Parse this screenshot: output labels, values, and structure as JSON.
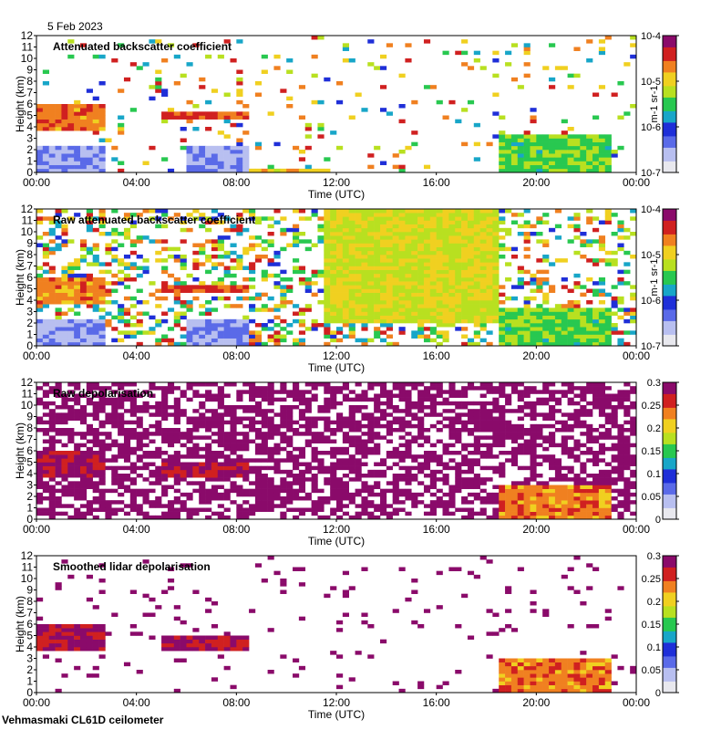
{
  "header": {
    "date": "5 Feb 2023"
  },
  "footer": {
    "site": "Vehmasmaki CL61D ceilometer"
  },
  "colors": {
    "background": "#ffffff",
    "no_data": "#ffffff",
    "axis": "#000000",
    "scale": [
      "#e8e8ee",
      "#b8bff0",
      "#5a6ae8",
      "#1f2fd8",
      "#18a6c8",
      "#28c850",
      "#b8e020",
      "#f0d020",
      "#f08020",
      "#d02020",
      "#8a0a6a"
    ]
  },
  "chart_data": [
    {
      "type": "heatmap",
      "title": "Attenuated backscatter coefficient",
      "xlabel": "Time (UTC)",
      "ylabel": "Height (km)",
      "x_unit": "hours",
      "xlim": [
        0,
        24
      ],
      "ylim": [
        0,
        12
      ],
      "xticks": [
        0,
        4,
        8,
        12,
        16,
        20,
        24
      ],
      "xticklabels": [
        "00:00",
        "04:00",
        "08:00",
        "12:00",
        "16:00",
        "20:00",
        "00:00"
      ],
      "yticks": [
        0,
        1,
        2,
        3,
        4,
        5,
        6,
        7,
        8,
        9,
        10,
        11,
        12
      ],
      "yticklabels": [
        "0",
        "1",
        "2",
        "3",
        "4",
        "5",
        "6",
        "7",
        "8",
        "9",
        "10",
        "11",
        "12"
      ],
      "colorbar": {
        "scale": "log",
        "range": [
          "1e-7",
          "1e-4"
        ],
        "ticklabels": [
          "10-7",
          "10-6",
          "10-5",
          "10-4"
        ],
        "tick_values": [
          0,
          0.3333,
          0.6667,
          1
        ],
        "unit_label": "m-1 sr-1"
      },
      "features": [
        {
          "name": "low cloud layer",
          "t": [
            0,
            2.8
          ],
          "h": [
            3.6,
            6.1
          ],
          "level": 0.85
        },
        {
          "name": "thin layer",
          "t": [
            5.0,
            8.5
          ],
          "h": [
            4.6,
            5.2
          ],
          "level": 0.9
        },
        {
          "name": "precipitation",
          "t": [
            18.4,
            23.0
          ],
          "h": [
            0,
            3.4
          ],
          "level": 0.6
        },
        {
          "name": "surface layer",
          "t": [
            8.6,
            11.6
          ],
          "h": [
            0,
            0.2
          ],
          "level": 0.75
        }
      ]
    },
    {
      "type": "heatmap",
      "title": "Raw attenuated backscatter coefficient",
      "xlabel": "Time (UTC)",
      "ylabel": "Height (km)",
      "x_unit": "hours",
      "xlim": [
        0,
        24
      ],
      "ylim": [
        0,
        12
      ],
      "xticks": [
        0,
        4,
        8,
        12,
        16,
        20,
        24
      ],
      "xticklabels": [
        "00:00",
        "04:00",
        "08:00",
        "12:00",
        "16:00",
        "20:00",
        "00:00"
      ],
      "yticks": [
        0,
        1,
        2,
        3,
        4,
        5,
        6,
        7,
        8,
        9,
        10,
        11,
        12
      ],
      "yticklabels": [
        "0",
        "1",
        "2",
        "3",
        "4",
        "5",
        "6",
        "7",
        "8",
        "9",
        "10",
        "11",
        "12"
      ],
      "colorbar": {
        "scale": "log",
        "range": [
          "1e-7",
          "1e-4"
        ],
        "ticklabels": [
          "10-7",
          "10-6",
          "10-5",
          "10-4"
        ],
        "tick_values": [
          0,
          0.3333,
          0.6667,
          1
        ],
        "unit_label": "m-1 sr-1"
      },
      "features": [
        {
          "name": "low cloud layer",
          "t": [
            0,
            2.8
          ],
          "h": [
            3.6,
            6.1
          ],
          "level": 0.85
        },
        {
          "name": "thin layer",
          "t": [
            5.0,
            8.5
          ],
          "h": [
            4.6,
            5.2
          ],
          "level": 0.9
        },
        {
          "name": "noisy daytime",
          "t": [
            11.6,
            18.4
          ],
          "h": [
            2,
            12
          ],
          "level": 0.7
        },
        {
          "name": "precipitation",
          "t": [
            18.4,
            23.0
          ],
          "h": [
            0,
            3.4
          ],
          "level": 0.6
        }
      ]
    },
    {
      "type": "heatmap",
      "title": "Raw depolarisation",
      "xlabel": "Time (UTC)",
      "ylabel": "Height (km)",
      "x_unit": "hours",
      "xlim": [
        0,
        24
      ],
      "ylim": [
        0,
        12
      ],
      "xticks": [
        0,
        4,
        8,
        12,
        16,
        20,
        24
      ],
      "xticklabels": [
        "00:00",
        "04:00",
        "08:00",
        "12:00",
        "16:00",
        "20:00",
        "00:00"
      ],
      "yticks": [
        0,
        1,
        2,
        3,
        4,
        5,
        6,
        7,
        8,
        9,
        10,
        11,
        12
      ],
      "yticklabels": [
        "0",
        "1",
        "2",
        "3",
        "4",
        "5",
        "6",
        "7",
        "8",
        "9",
        "10",
        "11",
        "12"
      ],
      "colorbar": {
        "scale": "linear",
        "range": [
          0,
          0.3
        ],
        "ticklabels": [
          "0",
          "0.05",
          "0.1",
          "0.15",
          "0.2",
          "0.25",
          "0.3"
        ],
        "tick_values": [
          0,
          0.1667,
          0.3333,
          0.5,
          0.6667,
          0.8333,
          1
        ]
      },
      "features": [
        {
          "name": "cloud layer",
          "t": [
            0,
            2.8
          ],
          "h": [
            3.6,
            6.0
          ],
          "level": 1.0
        },
        {
          "name": "thin layer",
          "t": [
            5.0,
            8.5
          ],
          "h": [
            3.6,
            5.0
          ],
          "level": 1.0
        },
        {
          "name": "precipitation",
          "t": [
            18.4,
            23.0
          ],
          "h": [
            0,
            3.0
          ],
          "level": 0.85
        }
      ]
    },
    {
      "type": "heatmap",
      "title": "Smoothed lidar depolarisation",
      "xlabel": "Time (UTC)",
      "ylabel": "Height (km)",
      "x_unit": "hours",
      "xlim": [
        0,
        24
      ],
      "ylim": [
        0,
        12
      ],
      "xticks": [
        0,
        4,
        8,
        12,
        16,
        20,
        24
      ],
      "xticklabels": [
        "00:00",
        "04:00",
        "08:00",
        "12:00",
        "16:00",
        "20:00",
        "00:00"
      ],
      "yticks": [
        0,
        1,
        2,
        3,
        4,
        5,
        6,
        7,
        8,
        9,
        10,
        11,
        12
      ],
      "yticklabels": [
        "0",
        "1",
        "2",
        "3",
        "4",
        "5",
        "6",
        "7",
        "8",
        "9",
        "10",
        "11",
        "12"
      ],
      "colorbar": {
        "scale": "linear",
        "range": [
          0,
          0.3
        ],
        "ticklabels": [
          "0",
          "0.05",
          "0.1",
          "0.15",
          "0.2",
          "0.25",
          "0.3"
        ],
        "tick_values": [
          0,
          0.1667,
          0.3333,
          0.5,
          0.6667,
          0.8333,
          1
        ]
      },
      "features": [
        {
          "name": "cloud layer",
          "t": [
            0,
            2.8
          ],
          "h": [
            3.6,
            6.0
          ],
          "level": 1.0
        },
        {
          "name": "thin layer",
          "t": [
            5.0,
            8.5
          ],
          "h": [
            3.6,
            5.0
          ],
          "level": 1.0
        },
        {
          "name": "precipitation",
          "t": [
            18.4,
            23.0
          ],
          "h": [
            0,
            3.0
          ],
          "level": 0.85
        }
      ]
    }
  ]
}
